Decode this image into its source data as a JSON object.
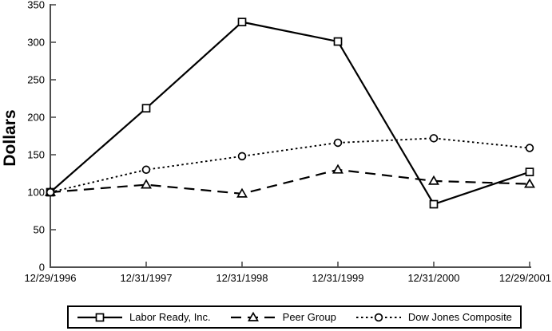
{
  "figure": {
    "background": "#ffffff"
  },
  "chart_data": {
    "type": "line",
    "title": "",
    "xlabel": "",
    "ylabel": "Dollars",
    "ylim": [
      0,
      350
    ],
    "yticks": [
      0,
      50,
      100,
      150,
      200,
      250,
      300,
      350
    ],
    "categories": [
      "12/29/1996",
      "12/31/1997",
      "12/31/1998",
      "12/31/1999",
      "12/31/2000",
      "12/29/2001"
    ],
    "series": [
      {
        "name": "Labor Ready, Inc.",
        "marker": "square",
        "line_style": "solid",
        "values": [
          100,
          212,
          327,
          301,
          84,
          127
        ]
      },
      {
        "name": "Peer Group",
        "marker": "triangle",
        "line_style": "dashed",
        "values": [
          100,
          110,
          98,
          130,
          115,
          111
        ]
      },
      {
        "name": "Dow Jones Composite",
        "marker": "circle",
        "line_style": "dotted",
        "values": [
          100,
          130,
          148,
          166,
          172,
          159
        ]
      }
    ],
    "legend_position": "bottom",
    "grid": false,
    "colors": {
      "line": "#000000",
      "axis": "#4f4f4f",
      "text": "#000000",
      "marker_fill": "#ffffff",
      "background": "#ffffff"
    }
  }
}
